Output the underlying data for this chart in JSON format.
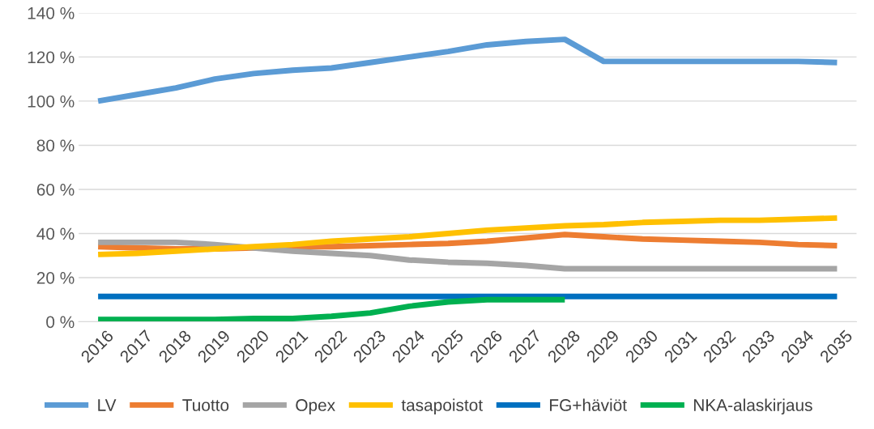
{
  "chart_data": {
    "type": "line",
    "categories": [
      "2016",
      "2017",
      "2018",
      "2019",
      "2020",
      "2021",
      "2022",
      "2023",
      "2024",
      "2025",
      "2026",
      "2027",
      "2028",
      "2029",
      "2030",
      "2031",
      "2032",
      "2033",
      "2034",
      "2035"
    ],
    "series": [
      {
        "name": "LV",
        "color": "#5b9bd5",
        "values": [
          100,
          103,
          106,
          110,
          112.5,
          114,
          115,
          117.5,
          120,
          122.5,
          125.5,
          127,
          128,
          118,
          118,
          118,
          118,
          118,
          118,
          117.5
        ]
      },
      {
        "name": "Tuotto",
        "color": "#ed7d31",
        "values": [
          34,
          33.5,
          33,
          33,
          33.5,
          34,
          34,
          34.5,
          35,
          35.5,
          36.5,
          38,
          39.5,
          38.5,
          37.5,
          37,
          36.5,
          36,
          35,
          34.5
        ]
      },
      {
        "name": "Opex",
        "color": "#a5a5a5",
        "values": [
          36,
          36,
          36,
          35,
          33.5,
          32,
          31,
          30,
          28,
          27,
          26.5,
          25.5,
          24,
          24,
          24,
          24,
          24,
          24,
          24,
          24
        ]
      },
      {
        "name": "tasapoistot",
        "color": "#ffc000",
        "values": [
          30.5,
          31,
          32,
          33,
          34,
          35,
          36.5,
          37.5,
          38.5,
          40,
          41.5,
          42.5,
          43.5,
          44,
          45,
          45.5,
          46,
          46,
          46.5,
          47
        ]
      },
      {
        "name": "FG+häviöt",
        "color": "#0070c0",
        "values": [
          11.5,
          11.5,
          11.5,
          11.5,
          11.5,
          11.5,
          11.5,
          11.5,
          11.5,
          11.5,
          11.5,
          11.5,
          11.5,
          11.5,
          11.5,
          11.5,
          11.5,
          11.5,
          11.5,
          11.5
        ]
      },
      {
        "name": "NKA-alaskirjaus",
        "color": "#00b050",
        "values": [
          1,
          1,
          1,
          1,
          1.5,
          1.5,
          2.5,
          4,
          7,
          9,
          10,
          10,
          10,
          null,
          null,
          null,
          null,
          null,
          null,
          null
        ]
      }
    ],
    "ylim": [
      0,
      140
    ],
    "yticks": [
      {
        "value": 0,
        "label": "0 %"
      },
      {
        "value": 20,
        "label": "20 %"
      },
      {
        "value": 40,
        "label": "40 %"
      },
      {
        "value": 60,
        "label": "60 %"
      },
      {
        "value": 80,
        "label": "80 %"
      },
      {
        "value": 100,
        "label": "100 %"
      },
      {
        "value": 120,
        "label": "120 %"
      },
      {
        "value": 140,
        "label": "140 %"
      }
    ],
    "grid": "y",
    "legend": "bottom",
    "marker": "none",
    "line_style": "solid"
  }
}
